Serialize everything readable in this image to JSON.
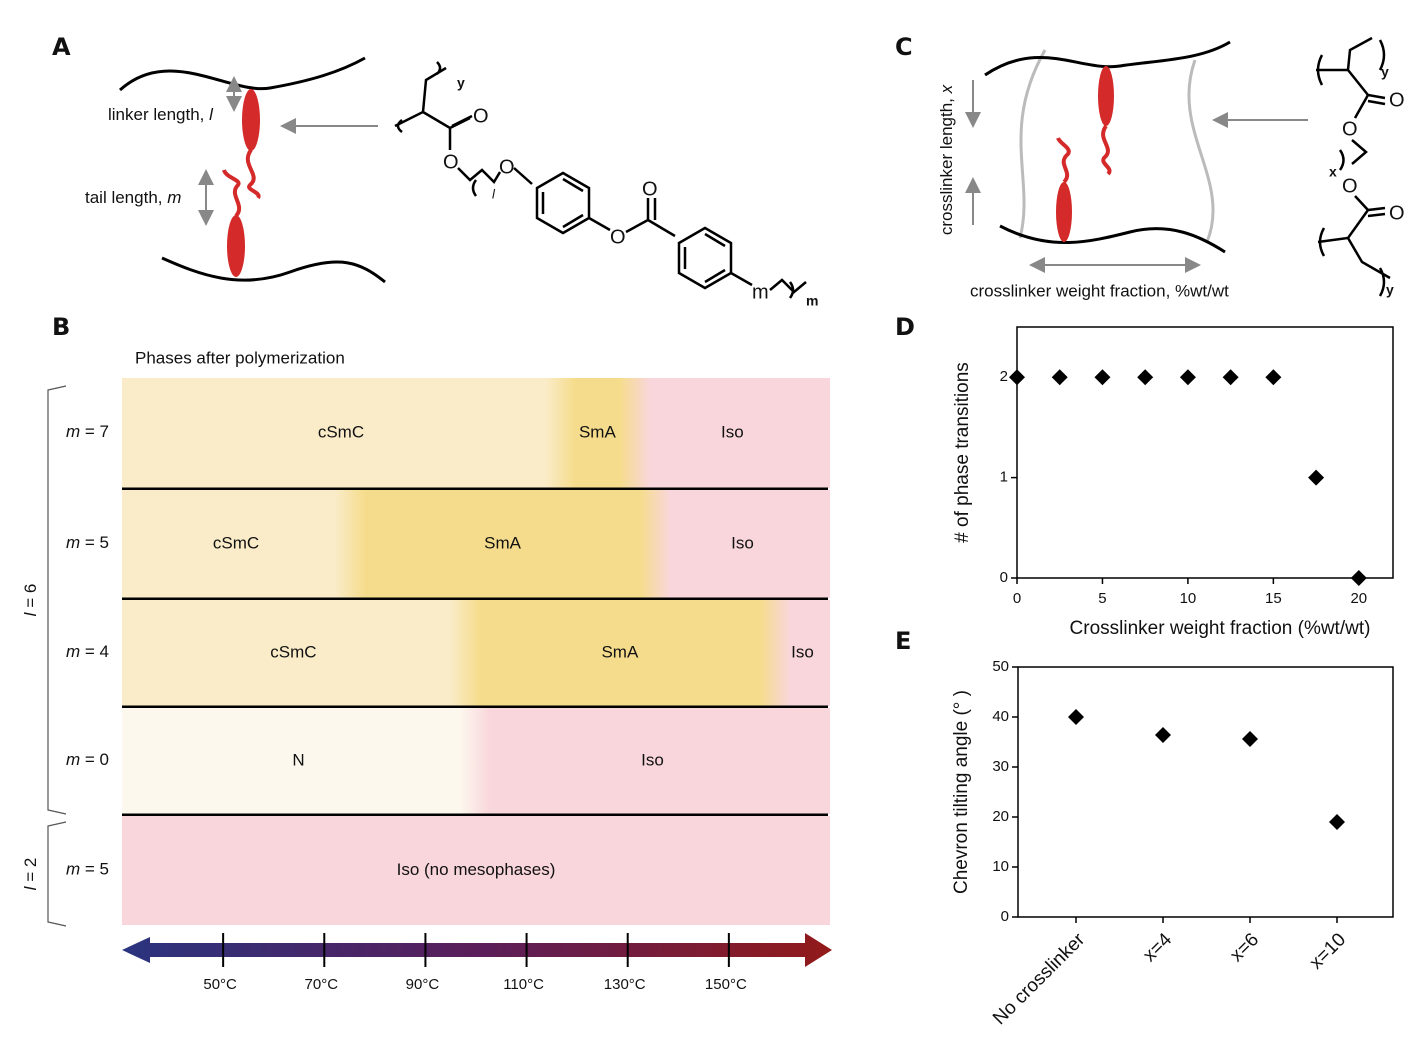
{
  "panel_a": {
    "panel": "A",
    "linker_text": "linker length, ",
    "linker_symbol": "l",
    "tail_text": "tail length, ",
    "tail_symbol": "m",
    "atoms": [
      "y",
      "O",
      "O",
      "l",
      "O",
      "O",
      "O",
      "m"
    ]
  },
  "panel_b": {
    "panel": "B",
    "title": "Phases after polymerization",
    "groups": [
      {
        "symbol": "l",
        "rest": " = 6"
      },
      {
        "symbol": "l",
        "rest": " = 2"
      }
    ],
    "rows": [
      {
        "symbol": "m",
        "rest": " = 7",
        "boundaries": [
          116.6,
          131.4
        ],
        "phases": [
          {
            "name": "cSmC",
            "color": "#faecc9"
          },
          {
            "name": "SmA",
            "color": "#f5dc8c"
          },
          {
            "name": "Iso",
            "color": "#f9d6db"
          }
        ]
      },
      {
        "symbol": "m",
        "rest": " = 5",
        "boundaries": [
          75.1,
          135.4
        ],
        "phases": [
          {
            "name": "cSmC",
            "color": "#faecc9"
          },
          {
            "name": "SmA",
            "color": "#f5dc8c"
          },
          {
            "name": "Iso",
            "color": "#f9d6db"
          }
        ]
      },
      {
        "symbol": "m",
        "rest": " = 4",
        "boundaries": [
          97.8,
          159.1
        ],
        "phases": [
          {
            "name": "cSmC",
            "color": "#faecc9"
          },
          {
            "name": "SmA",
            "color": "#f5dc8c"
          },
          {
            "name": "Iso",
            "color": "#f9d6db"
          }
        ]
      },
      {
        "symbol": "m",
        "rest": " = 0",
        "boundaries": [
          99.8
        ],
        "phases": [
          {
            "name": "N",
            "color": "#fdf8ee"
          },
          {
            "name": "Iso",
            "color": "#f9d6db"
          }
        ]
      },
      {
        "symbol": "m",
        "rest": " = 5",
        "boundaries": [],
        "phases": [
          {
            "name": "Iso (no mesophases)",
            "color": "#f9d6db"
          }
        ]
      }
    ],
    "xlim": [
      30,
      170
    ],
    "xticks": [
      {
        "value": 50,
        "label": "50°C"
      },
      {
        "value": 70,
        "label": "70°C"
      },
      {
        "value": 90,
        "label": "90°C"
      },
      {
        "value": 110,
        "label": "110°C"
      },
      {
        "value": 130,
        "label": "130°C"
      },
      {
        "value": 150,
        "label": "150°C"
      }
    ]
  },
  "panel_c": {
    "panel": "C",
    "length_text": "crosslinker length, ",
    "length_symbol": "x",
    "fraction_text": "crosslinker weight fraction, %wt/wt",
    "atoms": [
      "y",
      "O",
      "O",
      "x",
      "O",
      "O",
      "y"
    ]
  },
  "chart_data": [
    {
      "type": "scatter",
      "panel": "D",
      "x": [
        0,
        2.5,
        5,
        7.5,
        10,
        12.5,
        15,
        17.5,
        20
      ],
      "values": [
        2,
        2,
        2,
        2,
        2,
        2,
        2,
        1,
        0
      ],
      "xlim": [
        0,
        22
      ],
      "ylim": [
        0,
        2.5
      ],
      "xticks": [
        0,
        5,
        10,
        15,
        20
      ],
      "yticks": [
        0,
        1,
        2
      ],
      "x_label": "Crosslinker weight fraction (%wt/wt)",
      "y_label": "# of phase transitions",
      "color": "#000000"
    },
    {
      "type": "dot",
      "panel": "E",
      "categories": [
        "No crosslinker",
        "x=4",
        "x=6",
        "x=10"
      ],
      "values": [
        40,
        36.4,
        35.6,
        19
      ],
      "ylim": [
        0,
        50
      ],
      "yticks": [
        0,
        10,
        20,
        30,
        40,
        50
      ],
      "y_label": "Chevron tilting angle (° )",
      "color": "#000000"
    }
  ]
}
